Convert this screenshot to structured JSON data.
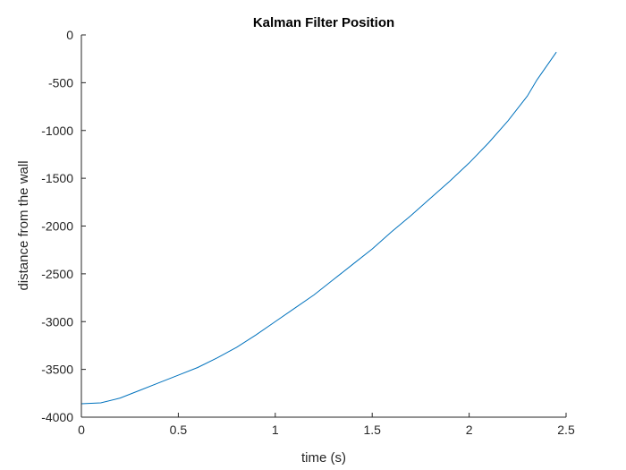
{
  "chart_data": {
    "type": "line",
    "title": "Kalman Filter Position",
    "xlabel": "time (s)",
    "ylabel": "distance from the wall",
    "xlim": [
      0,
      2.5
    ],
    "ylim": [
      -4000,
      0
    ],
    "xticks": [
      0,
      0.5,
      1,
      1.5,
      2,
      2.5
    ],
    "xtick_labels": [
      "0",
      "0.5",
      "1",
      "1.5",
      "2",
      "2.5"
    ],
    "yticks": [
      0,
      -500,
      -1000,
      -1500,
      -2000,
      -2500,
      -3000,
      -3500,
      -4000
    ],
    "ytick_labels": [
      "0",
      "-500",
      "-1000",
      "-1500",
      "-2000",
      "-2500",
      "-3000",
      "-3500",
      "-4000"
    ],
    "grid": false,
    "series": [
      {
        "color": "#0072BD",
        "x": [
          0,
          0.1,
          0.2,
          0.3,
          0.4,
          0.5,
          0.6,
          0.7,
          0.8,
          0.9,
          1.0,
          1.1,
          1.2,
          1.3,
          1.4,
          1.5,
          1.6,
          1.7,
          1.8,
          1.9,
          2.0,
          2.1,
          2.2,
          2.3,
          2.35,
          2.45
        ],
        "y": [
          -3860,
          -3850,
          -3800,
          -3720,
          -3640,
          -3560,
          -3480,
          -3380,
          -3270,
          -3140,
          -3000,
          -2860,
          -2720,
          -2560,
          -2400,
          -2240,
          -2060,
          -1890,
          -1710,
          -1530,
          -1340,
          -1130,
          -900,
          -640,
          -470,
          -180
        ]
      }
    ]
  }
}
